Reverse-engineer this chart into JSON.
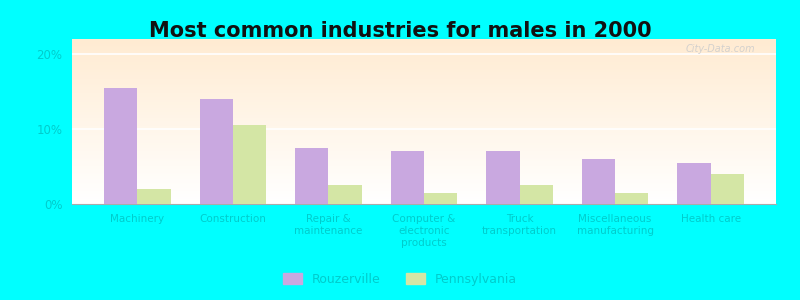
{
  "title": "Most common industries for males in 2000",
  "categories": [
    "Machinery",
    "Construction",
    "Repair &\nmaintenance",
    "Computer &\nelectronic\nproducts",
    "Truck\ntransportation",
    "Miscellaneous\nmanufacturing",
    "Health care"
  ],
  "rouzerville": [
    15.5,
    14.0,
    7.5,
    7.0,
    7.0,
    6.0,
    5.5
  ],
  "pennsylvania": [
    2.0,
    10.5,
    2.5,
    1.5,
    2.5,
    1.5,
    4.0
  ],
  "rouzerville_color": "#c9a8e0",
  "pennsylvania_color": "#d4e6a5",
  "background_color": "#00ffff",
  "ylim": [
    0,
    22
  ],
  "yticks": [
    0,
    10,
    20
  ],
  "ytick_labels": [
    "0%",
    "10%",
    "20%"
  ],
  "bar_width": 0.35,
  "legend_rouzerville": "Rouzerville",
  "legend_pennsylvania": "Pennsylvania",
  "title_fontsize": 15,
  "label_fontsize": 7.5,
  "tick_color": "#00cccc",
  "watermark": "City-Data.com"
}
